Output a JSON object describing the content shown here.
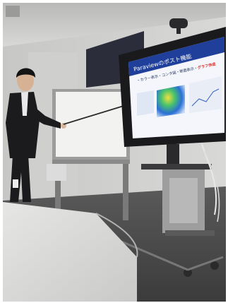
{
  "slide": {
    "title": "Paraviewのポスト機能",
    "subtitle": "・カラー表示・コンタ図・断面表示・",
    "highlight": "グラフ作成"
  },
  "colors": {
    "slide_header": "#1f3f9a",
    "highlight": "#e0241b",
    "wall": "#d4d4d2",
    "floor": "#4a4a4a",
    "suit": "#1b1b1e"
  },
  "icons": [
    "ceiling-vent-icon",
    "webcam-icon",
    "pointer-stick-icon",
    "power-outlet-icon"
  ]
}
